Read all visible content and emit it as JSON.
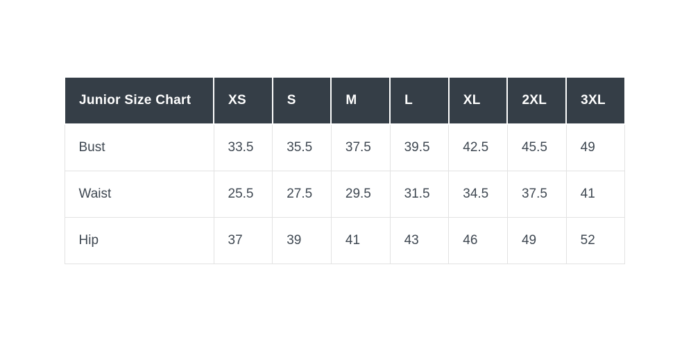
{
  "colors": {
    "header_bg": "#353E47",
    "header_text": "#FFFFFF",
    "body_text": "#3E4751",
    "grid_line": "#E2E2E2",
    "header_divider": "#FFFFFF",
    "page_bg": "#FFFFFF"
  },
  "chart_data": {
    "type": "table",
    "title": "Junior Size Chart",
    "columns": [
      "Junior Size Chart",
      "XS",
      "S",
      "M",
      "L",
      "XL",
      "2XL",
      "3XL"
    ],
    "rows": [
      {
        "label": "Bust",
        "values": [
          "33.5",
          "35.5",
          "37.5",
          "39.5",
          "42.5",
          "45.5",
          "49"
        ]
      },
      {
        "label": "Waist",
        "values": [
          "25.5",
          "27.5",
          "29.5",
          "31.5",
          "34.5",
          "37.5",
          "41"
        ]
      },
      {
        "label": "Hip",
        "values": [
          "37",
          "39",
          "41",
          "43",
          "46",
          "49",
          "52"
        ]
      }
    ]
  }
}
